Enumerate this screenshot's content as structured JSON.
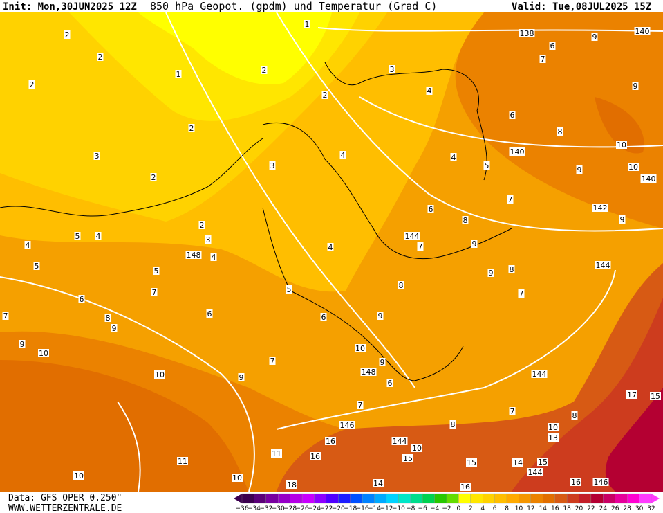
{
  "header": {
    "init": "Init: Mon,30JUN2025 12Z",
    "title": "850 hPa Geopot. (gpdm) und Temperatur (Grad C)",
    "valid": "Valid: Tue,08JUL2025 15Z"
  },
  "footer": {
    "data_source": "Data: GFS OPER 0.250°",
    "website": "WWW.WETTERZENTRALE.DE"
  },
  "color_scale": {
    "labels": [
      "−36",
      "−34",
      "−32",
      "−30",
      "−28",
      "−26",
      "−24",
      "−22",
      "−20",
      "−18",
      "−16",
      "−14",
      "−12",
      "−10",
      "−8",
      "−6",
      "−4",
      "−2",
      "0",
      "2",
      "4",
      "6",
      "8",
      "10",
      "12",
      "14",
      "16",
      "18",
      "20",
      "22",
      "24",
      "26",
      "28",
      "30",
      "32"
    ],
    "colors": [
      "#3c0050",
      "#5a0078",
      "#7800a0",
      "#9600c8",
      "#b400e6",
      "#c800ff",
      "#8c00ff",
      "#5000ff",
      "#1e1eff",
      "#0050ff",
      "#0082ff",
      "#00aaff",
      "#00d2ff",
      "#00e6c8",
      "#00dc8c",
      "#00d250",
      "#28c800",
      "#64dc00",
      "#ffff00",
      "#ffe600",
      "#ffd200",
      "#ffbe00",
      "#ffaa00",
      "#f59600",
      "#eb8200",
      "#e16e00",
      "#d75a14",
      "#cd3c1e",
      "#c31e28",
      "#b40032",
      "#c80064",
      "#e6009b",
      "#ff00d2",
      "#ff3cff"
    ]
  },
  "contour_labels": [
    "2",
    "2",
    "2",
    "1",
    "2",
    "1",
    "2",
    "3",
    "2",
    "3",
    "4",
    "3",
    "4",
    "2",
    "138",
    "140",
    "9",
    "6",
    "7",
    "9",
    "6",
    "8",
    "140",
    "10",
    "10",
    "140",
    "9",
    "5",
    "4",
    "7",
    "142",
    "9",
    "6",
    "8",
    "144",
    "7",
    "9",
    "144",
    "8",
    "9",
    "7",
    "2",
    "3",
    "4",
    "5",
    "4",
    "148",
    "4",
    "5",
    "5",
    "4",
    "5",
    "7",
    "6",
    "7",
    "6",
    "8",
    "9",
    "8",
    "6",
    "9",
    "9",
    "10",
    "10",
    "7",
    "9",
    "10",
    "9",
    "148",
    "6",
    "144",
    "7",
    "7",
    "8",
    "146",
    "10",
    "13",
    "8",
    "144",
    "10",
    "16",
    "11",
    "16",
    "15",
    "15",
    "14",
    "15",
    "144",
    "11",
    "10",
    "10",
    "18",
    "14",
    "16",
    "16",
    "146",
    "17",
    "15"
  ]
}
